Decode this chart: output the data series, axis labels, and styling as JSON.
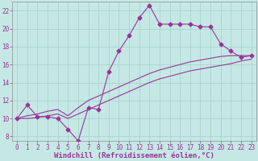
{
  "xlabel": "Windchill (Refroidissement éolien,°C)",
  "background_color": "#c5e8e5",
  "grid_color": "#a8d4d0",
  "line_color": "#993399",
  "xlim": [
    -0.5,
    23.5
  ],
  "ylim": [
    7.5,
    23
  ],
  "xticks": [
    0,
    1,
    2,
    3,
    4,
    5,
    6,
    7,
    8,
    9,
    10,
    11,
    12,
    13,
    14,
    15,
    16,
    17,
    18,
    19,
    20,
    21,
    22,
    23
  ],
  "yticks": [
    8,
    10,
    12,
    14,
    16,
    18,
    20,
    22
  ],
  "series1_x": [
    0,
    1,
    2,
    3,
    4,
    5,
    6,
    7,
    8,
    9,
    10,
    11,
    12,
    13,
    14,
    15,
    16,
    17,
    18,
    19,
    20,
    21,
    22,
    23
  ],
  "series1_y": [
    10.0,
    11.5,
    10.2,
    10.2,
    10.0,
    8.8,
    7.5,
    11.2,
    11.0,
    15.2,
    17.5,
    19.2,
    21.2,
    22.6,
    20.5,
    20.5,
    20.5,
    20.5,
    20.2,
    20.2,
    18.3,
    17.5,
    16.8,
    17.0
  ],
  "series2_x": [
    0,
    1,
    2,
    3,
    4,
    5,
    6,
    7,
    8,
    9,
    10,
    11,
    12,
    13,
    14,
    15,
    16,
    17,
    18,
    19,
    20,
    21,
    22,
    23
  ],
  "series2_y": [
    10.0,
    10.3,
    10.5,
    10.8,
    11.0,
    10.3,
    11.2,
    12.0,
    12.5,
    13.0,
    13.5,
    14.0,
    14.5,
    15.0,
    15.4,
    15.7,
    16.0,
    16.3,
    16.5,
    16.7,
    16.9,
    17.0,
    17.0,
    17.0
  ],
  "series3_x": [
    0,
    1,
    2,
    3,
    4,
    5,
    6,
    7,
    8,
    9,
    10,
    11,
    12,
    13,
    14,
    15,
    16,
    17,
    18,
    19,
    20,
    21,
    22,
    23
  ],
  "series3_y": [
    10.0,
    10.0,
    10.1,
    10.3,
    10.5,
    10.0,
    10.5,
    11.0,
    11.5,
    12.0,
    12.5,
    13.0,
    13.5,
    14.0,
    14.4,
    14.7,
    15.0,
    15.3,
    15.5,
    15.7,
    15.9,
    16.1,
    16.4,
    16.6
  ],
  "tick_fontsize": 5.5,
  "label_fontsize": 6.5
}
